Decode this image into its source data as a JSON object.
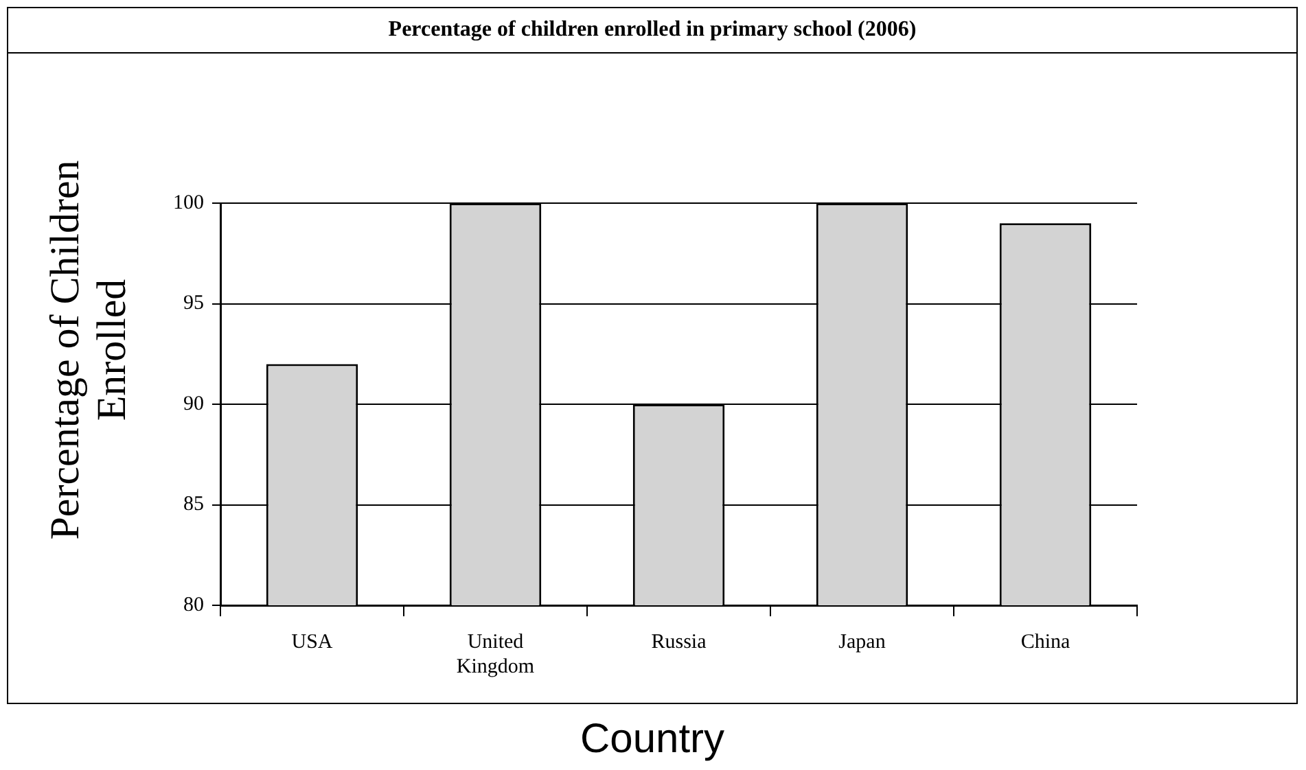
{
  "chart_data": {
    "type": "bar",
    "title": "Percentage of children enrolled in primary school (2006)",
    "xlabel": "Country",
    "ylabel": "Percentage of Children Enrolled",
    "categories": [
      "USA",
      "United Kingdom",
      "Russia",
      "Japan",
      "China"
    ],
    "values": [
      92,
      100,
      90,
      100,
      99
    ],
    "color": "#d3d3d3",
    "ylim": [
      80,
      100
    ],
    "yticks": [
      80,
      85,
      90,
      95,
      100
    ],
    "grid": "y"
  }
}
